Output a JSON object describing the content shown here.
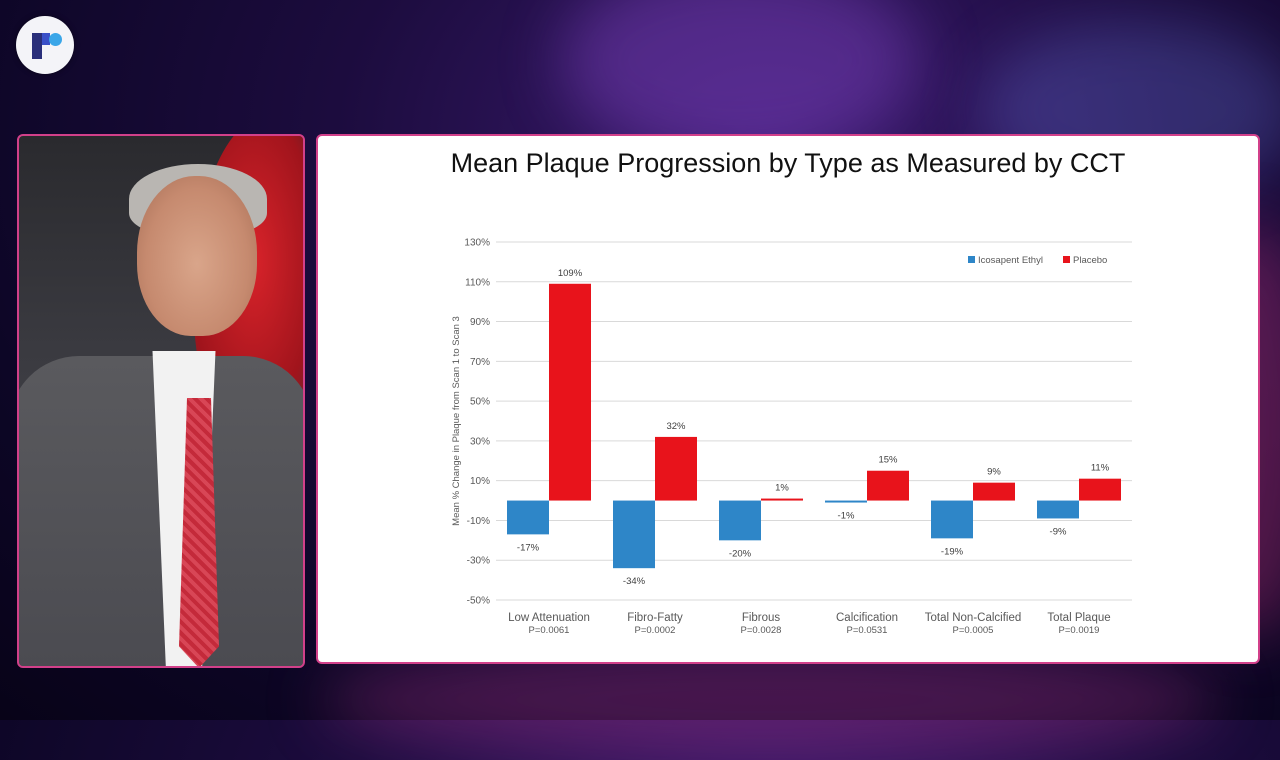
{
  "colors": {
    "icosapent": "#2e86c8",
    "placebo": "#e8131b",
    "frame_border": "#d2408a"
  },
  "logo": {
    "icon": "brand-logo-icon"
  },
  "slide": {
    "title": "Mean Plaque Progression by Type as Measured by CCT"
  },
  "chart_data": {
    "type": "bar",
    "title": "Mean Plaque Progression by Type as Measured by CCT",
    "ylabel": "Mean % Change in Plaque from Scan 1 to Scan 3",
    "xlabel": "",
    "ylim": [
      -50,
      130
    ],
    "y_ticks": [
      "130%",
      "110%",
      "90%",
      "70%",
      "50%",
      "30%",
      "10%",
      "-10%",
      "-30%",
      "-50%"
    ],
    "y_tick_values": [
      130,
      110,
      90,
      70,
      50,
      30,
      10,
      -10,
      -30,
      -50
    ],
    "grid": true,
    "legend_position": "top-right",
    "categories": [
      "Low Attenuation",
      "Fibro-Fatty",
      "Fibrous",
      "Calcification",
      "Total Non-Calcified",
      "Total Plaque"
    ],
    "p_values": [
      "P=0.0061",
      "P=0.0002",
      "P=0.0028",
      "P=0.0531",
      "P=0.0005",
      "P=0.0019"
    ],
    "series": [
      {
        "name": "Icosapent Ethyl",
        "values": [
          -17,
          -34,
          -20,
          -1,
          -19,
          -9
        ],
        "labels": [
          "-17%",
          "-34%",
          "-20%",
          "-1%",
          "-19%",
          "-9%"
        ]
      },
      {
        "name": "Placebo",
        "values": [
          109,
          32,
          1,
          15,
          9,
          11
        ],
        "labels": [
          "109%",
          "32%",
          "1%",
          "15%",
          "9%",
          "11%"
        ]
      }
    ]
  }
}
